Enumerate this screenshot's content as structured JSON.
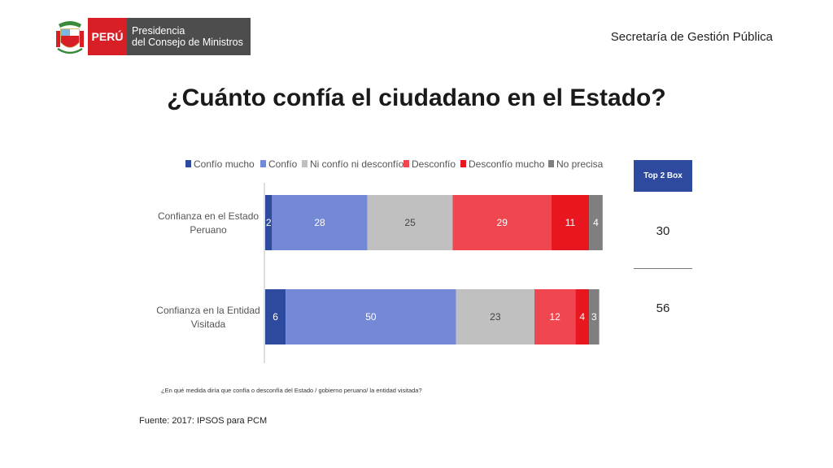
{
  "header": {
    "logo_peru": "PERÚ",
    "logo_line1": "Presidencia",
    "logo_line2": "del Consejo de Ministros",
    "org": "Secretaría de Gestión Pública"
  },
  "title": "¿Cuánto confía el ciudadano en el Estado?",
  "chart_data": {
    "type": "bar",
    "orientation": "horizontal",
    "stacked": true,
    "legend_position": "top",
    "grid": false,
    "xlim": [
      0,
      100
    ],
    "categories": [
      "Confianza en el Estado Peruano",
      "Confianza en la Entidad Visitada"
    ],
    "category_lines": [
      [
        "Confianza en el Estado",
        "Peruano"
      ],
      [
        "Confianza en la Entidad",
        "Visitada"
      ]
    ],
    "series": [
      {
        "name": "Confío mucho",
        "color": "#2e4a9e",
        "values": [
          2,
          6
        ]
      },
      {
        "name": "Confío",
        "color": "#7489d6",
        "values": [
          28,
          50
        ]
      },
      {
        "name": "Ni confío ni desconfío",
        "color": "#c0c0c0",
        "values": [
          25,
          23
        ]
      },
      {
        "name": "Desconfío",
        "color": "#ef4650",
        "values": [
          29,
          12
        ]
      },
      {
        "name": "Desconfío mucho",
        "color": "#e8161e",
        "values": [
          11,
          4
        ]
      },
      {
        "name": "No precisa",
        "color": "#7f7f7f",
        "values": [
          4,
          3
        ]
      }
    ],
    "label_colors": [
      "#ffffff",
      "#ffffff",
      "#444444",
      "#ffffff",
      "#ffffff",
      "#ffffff"
    ]
  },
  "top2": {
    "header": "Top 2 Box",
    "values": [
      "30",
      "56"
    ]
  },
  "question": "¿En qué medida diría que confía o desconfía del Estado / gobierno peruano/ la entidad visitada?",
  "source": "Fuente: 2017: IPSOS para PCM"
}
